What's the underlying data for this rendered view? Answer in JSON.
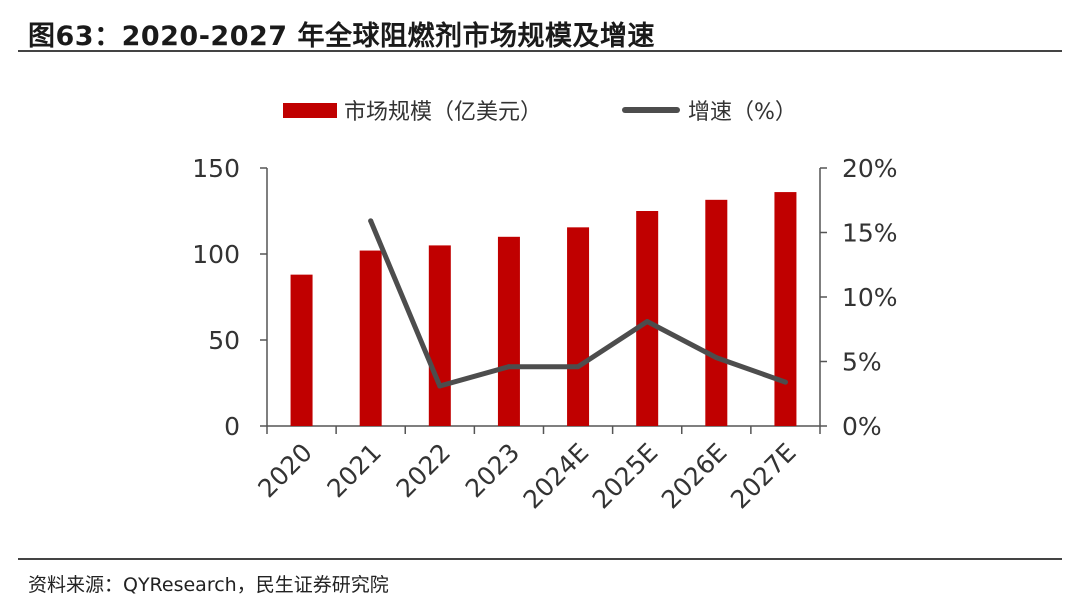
{
  "header": {
    "title": "图63：2020-2027 年全球阻燃剂市场规模及增速"
  },
  "footer": {
    "source": "资料来源：QYResearch，民生证券研究院"
  },
  "colors": {
    "bar": "#c00000",
    "line": "#4d4d4d",
    "axis": "#555555",
    "text": "#333333"
  },
  "chart_data": {
    "type": "bar",
    "categories": [
      "2020",
      "2021",
      "2022",
      "2023",
      "2024E",
      "2025E",
      "2026E",
      "2027E"
    ],
    "series": [
      {
        "name": "市场规模（亿美元）",
        "type": "bar",
        "axis": "left",
        "values": [
          88,
          102,
          105,
          110,
          115.5,
          125,
          131.5,
          136
        ]
      },
      {
        "name": "增速（%）",
        "type": "line",
        "axis": "right",
        "values": [
          null,
          15.9,
          3.1,
          4.6,
          4.6,
          8.1,
          5.3,
          3.4
        ]
      }
    ],
    "y_left": {
      "min": 0,
      "max": 150,
      "ticks": [
        "0",
        "50",
        "100",
        "150"
      ]
    },
    "y_right": {
      "min": 0,
      "max": 20,
      "ticks": [
        "0%",
        "5%",
        "10%",
        "15%",
        "20%"
      ]
    },
    "legend_position": "top-center",
    "grid": false
  }
}
